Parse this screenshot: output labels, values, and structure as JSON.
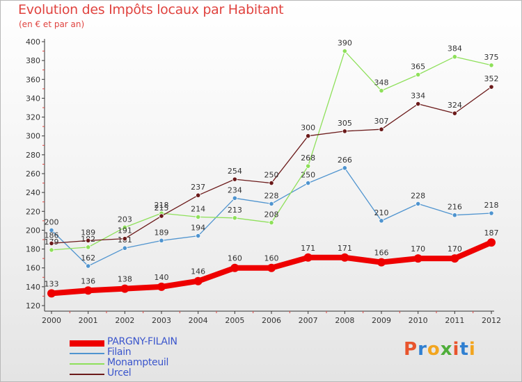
{
  "title": "Evolution des Impôts locaux par Habitant",
  "subtitle": "(en € et par an)",
  "logo": {
    "text": "Proxiti",
    "letter_colors": [
      "#e8542d",
      "#2f7fd1",
      "#f2a51f",
      "#4fae3a",
      "#e8542d",
      "#2f7fd1",
      "#f2a51f"
    ]
  },
  "chart_data": {
    "type": "line",
    "title": "Evolution des Impôts locaux par Habitant",
    "subtitle": "(en € et par an)",
    "categories": [
      "2000",
      "2001",
      "2002",
      "2003",
      "2004",
      "2005",
      "2006",
      "2007",
      "2008",
      "2009",
      "2010",
      "2011",
      "2012"
    ],
    "ylim": [
      120,
      400
    ],
    "yticks": [
      120,
      140,
      160,
      180,
      200,
      220,
      240,
      260,
      280,
      300,
      320,
      340,
      360,
      380,
      400
    ],
    "grid": false,
    "legend_position": "bottom-left",
    "series": [
      {
        "name": "PARGNY-FILAIN",
        "color": "#ee0000",
        "values": [
          133,
          136,
          138,
          140,
          146,
          160,
          160,
          171,
          171,
          166,
          170,
          170,
          187
        ]
      },
      {
        "name": "Filain",
        "color": "#4f94cf",
        "values": [
          200,
          162,
          181,
          189,
          194,
          234,
          228,
          250,
          266,
          210,
          228,
          216,
          218
        ]
      },
      {
        "name": "Monampteuil",
        "color": "#8ee05a",
        "values": [
          179,
          182,
          203,
          218,
          214,
          213,
          208,
          268,
          390,
          348,
          365,
          384,
          375
        ]
      },
      {
        "name": "Urcel",
        "color": "#6b1a1a",
        "values": [
          186,
          189,
          191,
          215,
          237,
          254,
          250,
          300,
          305,
          307,
          334,
          324,
          352
        ]
      }
    ]
  }
}
